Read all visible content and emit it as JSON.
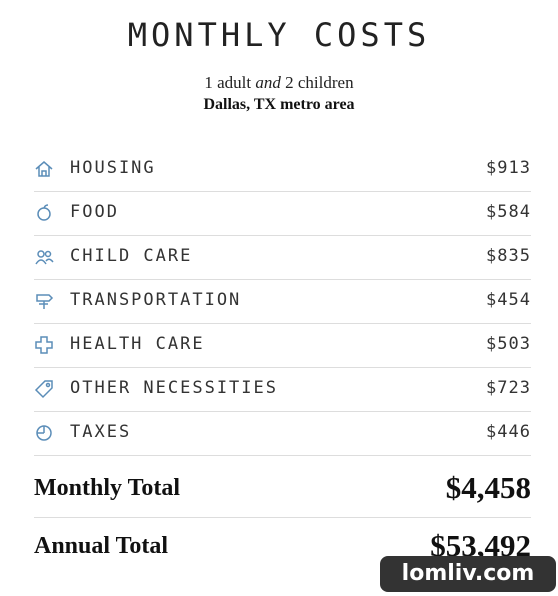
{
  "header": {
    "title": "MONTHLY COSTS",
    "subtitle": [
      "1 adult",
      "and",
      "2 children"
    ],
    "location": "Dallas, TX metro area"
  },
  "rows": [
    {
      "label": "HOUSING",
      "amount": "$913"
    },
    {
      "label": "FOOD",
      "amount": "$584"
    },
    {
      "label": "CHILD CARE",
      "amount": "$835"
    },
    {
      "label": "TRANSPORTATION",
      "amount": "$454"
    },
    {
      "label": "HEALTH CARE",
      "amount": "$503"
    },
    {
      "label": "OTHER NECESSITIES",
      "amount": "$723"
    },
    {
      "label": "TAXES",
      "amount": "$446"
    }
  ],
  "totals": {
    "monthly_label": "Monthly Total",
    "monthly": "$4,458",
    "annual_label": "Annual Total",
    "annual": "$53,492"
  },
  "watermark": "lomliv.com"
}
